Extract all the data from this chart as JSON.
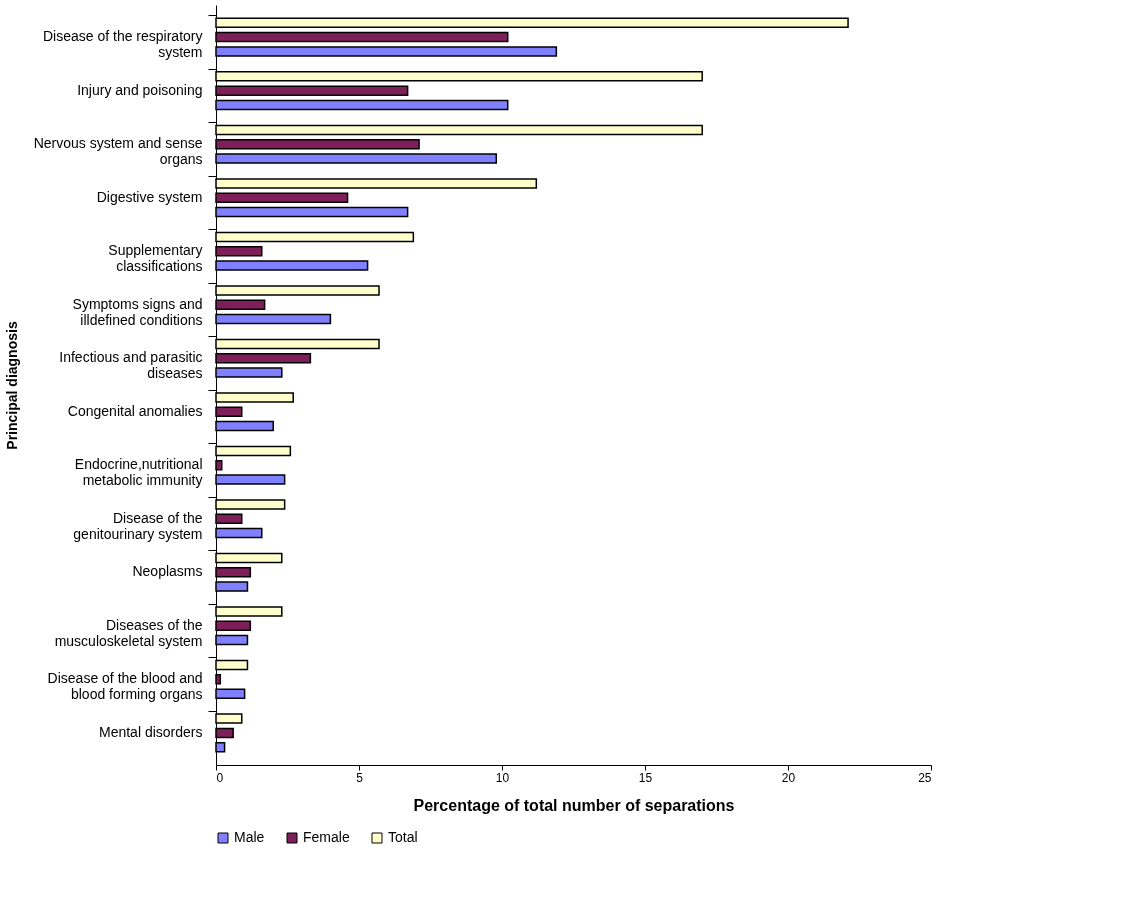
{
  "chart_data": {
    "type": "bar",
    "orientation": "horizontal",
    "xlabel": "Percentage of total number of separations",
    "ylabel": "Principal diagnosis",
    "categories": [
      "Disease of the respiratory system",
      "Injury and poisoning",
      "Nervous system and sense organs",
      "Digestive system",
      "Supplementary classifications",
      "Symptoms signs and illdefined conditions",
      "Infectious and parasitic diseases",
      "Congenital anomalies",
      "Endocrine,nutritional metabolic immunity",
      "Disease of the genitourinary system",
      "Neoplasms",
      "Diseases of the musculoskeletal system",
      "Disease of the blood and blood forming organs",
      "Mental disorders"
    ],
    "series": [
      {
        "name": "Male",
        "color": "#8080ff",
        "values": [
          11.9,
          10.2,
          9.8,
          6.7,
          5.3,
          4.0,
          2.3,
          2.0,
          2.4,
          1.6,
          1.1,
          1.1,
          1.0,
          0.3
        ]
      },
      {
        "name": "Female",
        "color": "#7f1f5a",
        "values": [
          10.2,
          6.7,
          7.1,
          4.6,
          1.6,
          1.7,
          3.3,
          0.9,
          0.2,
          0.9,
          1.2,
          1.2,
          0.15,
          0.6
        ]
      },
      {
        "name": "Total",
        "color": "#ffffcc",
        "values": [
          22.1,
          17.0,
          17.0,
          11.2,
          6.9,
          5.7,
          5.7,
          2.7,
          2.6,
          2.4,
          2.3,
          2.3,
          1.1,
          0.9
        ]
      }
    ],
    "xlim": [
      0,
      25
    ],
    "xticks": [
      0,
      5,
      10,
      15,
      20,
      25
    ],
    "grid": false,
    "legend": "bottom"
  }
}
